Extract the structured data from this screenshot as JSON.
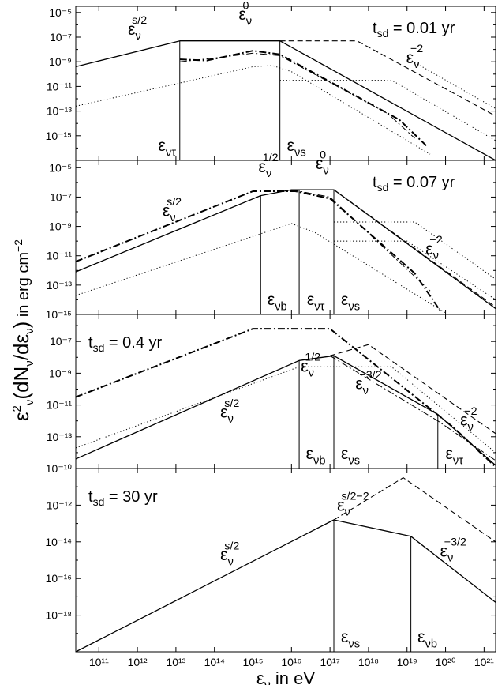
{
  "chart_data": {
    "type": "line",
    "xlabel": "ε_ν in eV",
    "ylabel": "ε²_ν(dN_ν/dε_ν) in erg cm⁻²",
    "xscale": "log",
    "yscale": "log",
    "xlim_log": [
      10.4,
      21.3
    ],
    "x_tick_labels": [
      "10¹¹",
      "10¹²",
      "10¹³",
      "10¹⁴",
      "10¹⁵",
      "10¹⁶",
      "10¹⁷",
      "10¹⁸",
      "10¹⁹",
      "10²⁰",
      "10²¹"
    ],
    "x_tick_exponents": [
      11,
      12,
      13,
      14,
      15,
      16,
      17,
      18,
      19,
      20,
      21
    ],
    "panels": [
      {
        "id": "panel1",
        "time_label": "t_sd = 0.01 yr",
        "ylim_log": [
          -17,
          -4.5
        ],
        "y_tick_labels": [
          "10⁻⁵",
          "10⁻⁷",
          "10⁻⁹",
          "10⁻¹¹",
          "10⁻¹³",
          "10⁻¹⁵"
        ],
        "y_tick_exponents": [
          -5,
          -7,
          -9,
          -11,
          -13,
          -15
        ],
        "series": [
          {
            "style": "solid",
            "points": [
              [
                10.4,
                -9.4
              ],
              [
                13.1,
                -7.3
              ],
              [
                15.7,
                -7.3
              ],
              [
                21.3,
                -17
              ]
            ]
          },
          {
            "style": "dashdot",
            "points": [
              [
                13.1,
                -9.0
              ],
              [
                14.0,
                -8.7
              ],
              [
                15.0,
                -8.3
              ],
              [
                15.7,
                -8.5
              ],
              [
                18.5,
                -13.2
              ],
              [
                19.2,
                -15.2
              ]
            ]
          },
          {
            "style": "dashdot-thick",
            "points": [
              [
                13.1,
                -8.8
              ],
              [
                13.8,
                -8.9
              ],
              [
                15.0,
                -8.1
              ],
              [
                15.7,
                -8.4
              ],
              [
                18.8,
                -13.7
              ],
              [
                19.5,
                -15.8
              ]
            ]
          },
          {
            "style": "dashed",
            "points": [
              [
                15.7,
                -7.3
              ],
              [
                17.7,
                -7.3
              ],
              [
                21.3,
                -13.4
              ]
            ]
          },
          {
            "style": "dotted",
            "points": [
              [
                10.4,
                -12.6
              ],
              [
                15.0,
                -9.4
              ],
              [
                15.5,
                -9.3
              ],
              [
                16.0,
                -9.8
              ],
              [
                19.6,
                -16.5
              ]
            ]
          },
          {
            "style": "dotted",
            "points": [
              [
                15.7,
                -8.7
              ],
              [
                19.0,
                -8.7
              ],
              [
                21.3,
                -12.8
              ]
            ]
          },
          {
            "style": "dotted",
            "points": [
              [
                15.7,
                -10.5
              ],
              [
                18.6,
                -10.5
              ],
              [
                21.3,
                -15.4
              ]
            ]
          }
        ],
        "vlines": [
          {
            "x": 13.1,
            "y_top": -7.3,
            "label": "ε_ντ"
          },
          {
            "x": 15.7,
            "y_top": -7.3,
            "label": "ε_νs"
          }
        ],
        "annotations": [
          {
            "text": "ε_ν^(s/2)",
            "x": 12.0,
            "y": -6.8
          },
          {
            "text": "ε_ν^0",
            "x": 14.8,
            "y": -5.6
          },
          {
            "text": "ε_ν^(−2)",
            "x": 19.2,
            "y": -9.1
          }
        ]
      },
      {
        "id": "panel2",
        "time_label": "t_sd = 0.07 yr",
        "ylim_log": [
          -15,
          -4.5
        ],
        "y_tick_labels": [
          "10⁻⁵",
          "10⁻⁷",
          "10⁻⁹",
          "10⁻¹¹",
          "10⁻¹³",
          "10⁻¹⁵"
        ],
        "y_tick_exponents": [
          -5,
          -7,
          -9,
          -11,
          -13,
          -15
        ],
        "series": [
          {
            "style": "solid",
            "points": [
              [
                10.4,
                -12.1
              ],
              [
                15.2,
                -6.9
              ],
              [
                16.0,
                -6.5
              ],
              [
                17.1,
                -6.5
              ],
              [
                21.3,
                -14.6
              ]
            ]
          },
          {
            "style": "dashed",
            "points": [
              [
                17.1,
                -6.5
              ],
              [
                21.3,
                -14.5
              ]
            ]
          },
          {
            "style": "dashdot-thick",
            "points": [
              [
                10.4,
                -11.4
              ],
              [
                15.0,
                -6.6
              ],
              [
                16.1,
                -6.6
              ],
              [
                17.0,
                -7.1
              ],
              [
                19.2,
                -12.2
              ],
              [
                19.9,
                -14.9
              ]
            ]
          },
          {
            "style": "dashdot",
            "points": [
              [
                16.0,
                -6.5
              ],
              [
                17.0,
                -7.0
              ],
              [
                19.6,
                -13.4
              ]
            ]
          },
          {
            "style": "dotted",
            "points": [
              [
                10.4,
                -13.7
              ],
              [
                16.0,
                -8.8
              ],
              [
                16.6,
                -9.4
              ],
              [
                20.0,
                -14.9
              ]
            ]
          },
          {
            "style": "dotted",
            "points": [
              [
                17.1,
                -8.7
              ],
              [
                19.2,
                -8.7
              ],
              [
                21.3,
                -12.6
              ]
            ]
          },
          {
            "style": "dotted",
            "points": [
              [
                17.1,
                -10.0
              ],
              [
                19.0,
                -10.0
              ],
              [
                21.3,
                -14.0
              ]
            ]
          }
        ],
        "vlines": [
          {
            "x": 15.2,
            "y_top": -6.9,
            "label": "ε_νb"
          },
          {
            "x": 16.2,
            "y_top": -6.5,
            "label": "ε_ντ"
          },
          {
            "x": 17.1,
            "y_top": -6.5,
            "label": "ε_νs"
          }
        ],
        "annotations": [
          {
            "text": "ε_ν^(s/2)",
            "x": 12.9,
            "y": -8.3
          },
          {
            "text": "ε_ν^(1/2)",
            "x": 15.4,
            "y": -5.3
          },
          {
            "text": "ε_ν^0",
            "x": 16.8,
            "y": -5.1
          },
          {
            "text": "ε_ν^(−2)",
            "x": 19.7,
            "y": -10.9
          }
        ]
      },
      {
        "id": "panel3",
        "time_label": "t_sd = 0.4 yr",
        "ylim_log": [
          -15,
          -5.3
        ],
        "y_tick_labels": [
          "10⁻⁷",
          "10⁻⁹",
          "10⁻¹¹",
          "10⁻¹³"
        ],
        "y_tick_exponents": [
          -7,
          -9,
          -11,
          -13
        ],
        "series": [
          {
            "style": "solid",
            "points": [
              [
                10.4,
                -14.4
              ],
              [
                16.2,
                -8.2
              ],
              [
                17.1,
                -7.9
              ],
              [
                19.8,
                -11.6
              ],
              [
                21.3,
                -14.8
              ]
            ]
          },
          {
            "style": "dashed",
            "points": [
              [
                17.0,
                -7.9
              ],
              [
                18.0,
                -7.2
              ],
              [
                21.3,
                -12.8
              ]
            ]
          },
          {
            "style": "dashdot-thick",
            "points": [
              [
                10.4,
                -10.5
              ],
              [
                15.0,
                -6.2
              ],
              [
                17.0,
                -6.2
              ],
              [
                20.2,
                -12.4
              ],
              [
                21.3,
                -14.9
              ]
            ]
          },
          {
            "style": "dashdot",
            "points": [
              [
                17.0,
                -7.9
              ],
              [
                19.8,
                -12.0
              ],
              [
                21.3,
                -14.5
              ]
            ]
          },
          {
            "style": "dotted",
            "points": [
              [
                10.4,
                -13.7
              ],
              [
                16.2,
                -8.6
              ],
              [
                18.6,
                -8.6
              ],
              [
                21.3,
                -14.0
              ]
            ]
          }
        ],
        "vlines": [
          {
            "x": 16.2,
            "y_top": -8.2,
            "label": "ε_νb"
          },
          {
            "x": 17.1,
            "y_top": -7.9,
            "label": "ε_νs"
          },
          {
            "x": 19.8,
            "y_top": -11.6,
            "label": "ε_ντ"
          }
        ],
        "annotations": [
          {
            "text": "ε_ν^(s/2)",
            "x": 14.4,
            "y": -11.8
          },
          {
            "text": "ε_ν^(1/2)",
            "x": 16.5,
            "y": -8.9
          },
          {
            "text": "ε_ν^(−3/2)",
            "x": 18.0,
            "y": -10.0
          },
          {
            "text": "ε_ν^(−2)",
            "x": 20.6,
            "y": -12.3
          }
        ]
      },
      {
        "id": "panel4",
        "time_label": "t_sd = 30 yr",
        "ylim_log": [
          -20,
          -10
        ],
        "y_tick_labels": [
          "10⁻¹⁰",
          "10⁻¹²",
          "10⁻¹⁴",
          "10⁻¹⁶",
          "10⁻¹⁸"
        ],
        "y_tick_exponents": [
          -10,
          -12,
          -14,
          -16,
          -18
        ],
        "series": [
          {
            "style": "solid",
            "points": [
              [
                10.4,
                -20
              ],
              [
                17.1,
                -12.8
              ],
              [
                19.1,
                -13.7
              ],
              [
                21.3,
                -17.3
              ]
            ]
          },
          {
            "style": "dashed",
            "points": [
              [
                17.1,
                -12.8
              ],
              [
                18.9,
                -10.5
              ],
              [
                21.3,
                -14.0
              ]
            ]
          }
        ],
        "vlines": [
          {
            "x": 17.1,
            "y_top": -12.8,
            "label": "ε_νs"
          },
          {
            "x": 19.1,
            "y_top": -13.7,
            "label": "ε_νb"
          }
        ],
        "annotations": [
          {
            "text": "ε_ν^(s/2)",
            "x": 14.4,
            "y": -15.0
          },
          {
            "text": "ε_ν^(s/2−2)",
            "x": 17.6,
            "y": -12.3
          },
          {
            "text": "ε_ν^(−3/2)",
            "x": 20.2,
            "y": -14.8
          }
        ]
      }
    ]
  }
}
